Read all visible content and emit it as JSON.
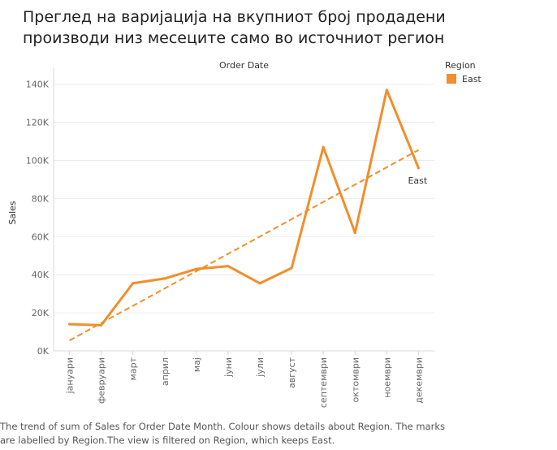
{
  "title_lines": [
    "Преглед на варијација на вкупниот број продадени",
    "производи низ месеците само во источниот регион"
  ],
  "caption_lines": [
    "The trend of sum of Sales for Order Date Month. Colour shows details about Region. The marks",
    "are labelled by Region.The view is filtered on Region, which keeps East."
  ],
  "chart_data": {
    "type": "line",
    "column_header": "Order Date",
    "ylabel": "Sales",
    "ylim": [
      0,
      145000
    ],
    "yticks": [
      0,
      20000,
      40000,
      60000,
      80000,
      100000,
      120000,
      140000
    ],
    "ytick_labels": [
      "0K",
      "20K",
      "40K",
      "60K",
      "80K",
      "100K",
      "120K",
      "140K"
    ],
    "categories": [
      "јануари",
      "февруари",
      "март",
      "април",
      "мај",
      "јуни",
      "јули",
      "август",
      "септември",
      "октомври",
      "ноември",
      "декември"
    ],
    "series": [
      {
        "name": "East",
        "color": "#f28e2b",
        "values": [
          14000,
          13500,
          35500,
          38000,
          43000,
          44500,
          35500,
          43500,
          107000,
          62000,
          137000,
          96000
        ],
        "end_label": "East"
      }
    ],
    "trend_line": {
      "style": "dashed",
      "color": "#f28e2b",
      "start_value": 5500,
      "end_value": 105500
    },
    "legend": {
      "title": "Region",
      "entries": [
        {
          "label": "East",
          "color": "#f28e2b"
        }
      ],
      "position": "top-right"
    },
    "grid": true
  }
}
